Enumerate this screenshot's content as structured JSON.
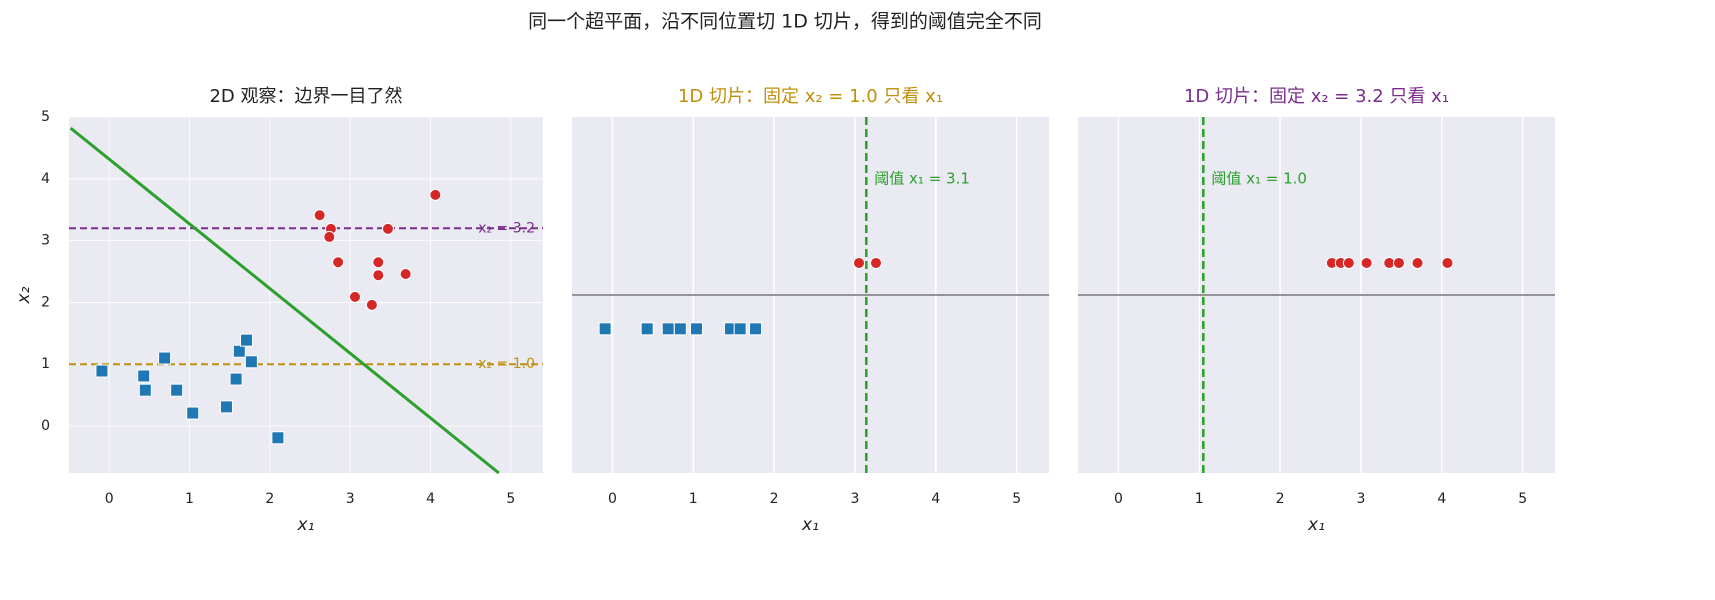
{
  "title": "同一个超平面，沿不同位置切 1D 切片，得到的阈值完全不同",
  "chart_data": [
    {
      "type": "scatter",
      "title": "2D 观察：边界一目了然",
      "xlabel": "x₁",
      "ylabel": "x₂",
      "xlim": [
        -0.5,
        5.4
      ],
      "ylim": [
        -0.76,
        5.0
      ],
      "xticks": [
        0,
        1,
        2,
        3,
        4,
        5
      ],
      "yticks": [
        0,
        1,
        2,
        3,
        4,
        5
      ],
      "grid": true,
      "series": [
        {
          "color": "#1f77b4",
          "marker": "square",
          "x": [
            -0.09,
            0.43,
            0.45,
            0.69,
            0.84,
            1.04,
            1.46,
            1.58,
            1.62,
            1.71,
            1.77,
            2.1
          ],
          "y": [
            0.89,
            0.81,
            0.58,
            1.1,
            0.58,
            0.21,
            0.31,
            0.76,
            1.21,
            1.39,
            1.04,
            -0.19
          ]
        },
        {
          "color": "#d62728",
          "marker": "circle",
          "x": [
            2.62,
            2.76,
            2.74,
            2.85,
            3.06,
            3.27,
            3.35,
            3.35,
            3.47,
            3.69,
            4.06
          ],
          "y": [
            3.41,
            3.19,
            3.06,
            2.65,
            2.09,
            1.96,
            2.65,
            2.44,
            3.19,
            2.46,
            3.74
          ]
        }
      ],
      "hyperplane": {
        "color": "#2ca02c",
        "x": [
          -0.48,
          4.85
        ],
        "y": [
          4.82,
          -0.76
        ]
      },
      "hlines": [
        {
          "value": 3.2,
          "label": "x₂ = 3.2",
          "color": "#7b2d8e"
        },
        {
          "value": 1.0,
          "label": "x₂ = 1.0",
          "color": "#c08f0c"
        }
      ]
    },
    {
      "type": "strip",
      "title": "1D 切片：固定 x₂ = 1.0 只看 x₁",
      "title_color": "#c08f0c",
      "xlabel": "x₁",
      "xlim": [
        -0.5,
        5.4
      ],
      "ylim": [
        -1,
        1
      ],
      "xticks": [
        0,
        1,
        2,
        3,
        4,
        5
      ],
      "baseline": 0,
      "series": [
        {
          "color": "#1f77b4",
          "marker": "square",
          "y": -0.19,
          "x": [
            -0.09,
            0.43,
            0.69,
            0.84,
            1.04,
            1.46,
            1.58,
            1.77
          ]
        },
        {
          "color": "#d62728",
          "marker": "circle",
          "y": 0.18,
          "x": [
            3.05,
            3.26
          ]
        }
      ],
      "threshold": {
        "value": 3.14,
        "label": "阈值 x₁ = 3.1",
        "color": "#2ca02c"
      }
    },
    {
      "type": "strip",
      "title": "1D 切片：固定 x₂ = 3.2 只看 x₁",
      "title_color": "#7b2d8e",
      "xlabel": "x₁",
      "xlim": [
        -0.5,
        5.4
      ],
      "ylim": [
        -1,
        1
      ],
      "xticks": [
        0,
        1,
        2,
        3,
        4,
        5
      ],
      "baseline": 0,
      "series": [
        {
          "color": "#d62728",
          "marker": "circle",
          "y": 0.18,
          "x": [
            2.64,
            2.75,
            2.85,
            3.07,
            3.35,
            3.47,
            3.7,
            4.07
          ]
        }
      ],
      "threshold": {
        "value": 1.05,
        "label": "阈值 x₁ = 1.0",
        "color": "#2ca02c"
      }
    }
  ]
}
